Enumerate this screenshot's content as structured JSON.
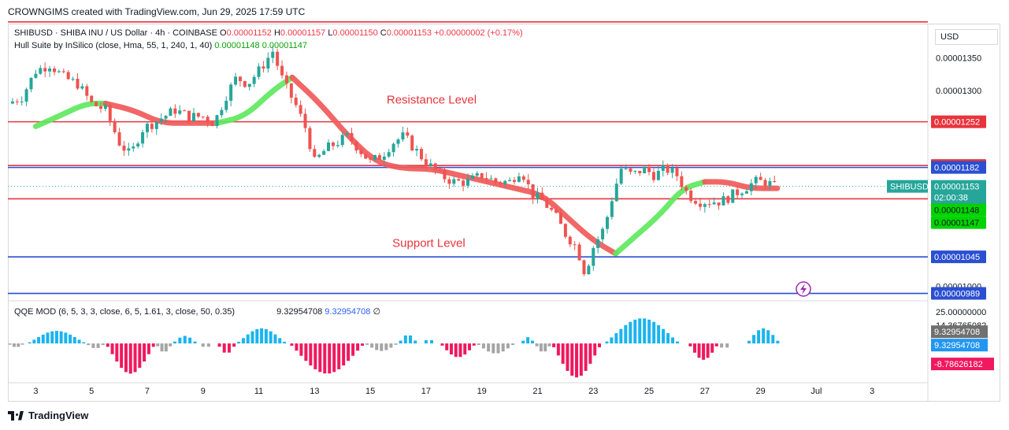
{
  "header": {
    "attribution": "CROWNGIMS created with TradingView.com, Jun 29, 2025 17:59 UTC",
    "symbol_line": "SHIBUSD · SHIBA INU / US Dollar · 4h · COINBASE",
    "ohlc": [
      {
        "k": "O",
        "v": "0.00001152"
      },
      {
        "k": "H",
        "v": "0.00001157"
      },
      {
        "k": "L",
        "v": "0.00001150"
      },
      {
        "k": "C",
        "v": "0.00001153"
      }
    ],
    "change": "+0.00000002 (+0.17%)",
    "indicator1_name": "Hull Suite by InSilico (close, Hma, 55, 1, 240, 1, 40)",
    "indicator1_values": [
      "0.00001148",
      "0.00001147"
    ],
    "indicator2_name": "QQE MOD (6, 5, 3, 3, close, 6, 5, 1.61, 3, close, 50, 0.35)",
    "indicator2_values": [
      "9.32954708",
      "9.32954708"
    ],
    "indicator2_extra": "∅",
    "currency": "USD",
    "brand": "TradingView"
  },
  "colors": {
    "up": "#26a69a",
    "down": "#ef5350",
    "hull_up": "#5ee85e",
    "hull_down": "#f05a5a",
    "red_line": "#e8343d",
    "blue_line": "#2a4fd1",
    "qqe_blue": "#1ab4f0",
    "qqe_red": "#f0185f",
    "qqe_gray": "#a5a5a5"
  },
  "chart_data": {
    "type": "candlestick",
    "title": "SHIBUSD · SHIBA INU / US Dollar · 4h · COINBASE",
    "price_axis": {
      "ticks": [
        "0.00001350",
        "0.00001300",
        "0.00001000"
      ],
      "ylim": [
        9.8e-06,
        1.4e-05
      ]
    },
    "x_ticks": [
      {
        "label": "3",
        "day": 3
      },
      {
        "label": "5",
        "day": 5
      },
      {
        "label": "7",
        "day": 7
      },
      {
        "label": "9",
        "day": 9
      },
      {
        "label": "11",
        "day": 11
      },
      {
        "label": "13",
        "day": 13
      },
      {
        "label": "15",
        "day": 15
      },
      {
        "label": "17",
        "day": 17
      },
      {
        "label": "19",
        "day": 19
      },
      {
        "label": "21",
        "day": 21
      },
      {
        "label": "23",
        "day": 23
      },
      {
        "label": "25",
        "day": 25
      },
      {
        "label": "27",
        "day": 27
      },
      {
        "label": "29",
        "day": 29
      },
      {
        "label": "Jul",
        "day": 31
      },
      {
        "label": "3",
        "day": 33
      }
    ],
    "xlim_days": [
      2.0,
      35.0
    ],
    "horizontal_levels": [
      {
        "value": 1.405e-05,
        "color": "red",
        "label": ""
      },
      {
        "value": 1.252e-05,
        "color": "red",
        "label": "0.00001252"
      },
      {
        "value": 1.185e-05,
        "color": "red",
        "label": "0.00001185"
      },
      {
        "value": 1.182e-05,
        "color": "blue",
        "label": "0.00001182"
      },
      {
        "value": 1.134e-05,
        "color": "red",
        "label": "0.00001134"
      },
      {
        "value": 1.045e-05,
        "color": "blue",
        "label": "0.00001045"
      },
      {
        "value": 9.89e-06,
        "color": "blue",
        "label": "0.00000989"
      }
    ],
    "annotations": [
      {
        "text": "Resistance Level",
        "day": 17.2,
        "value": 1.28e-05
      },
      {
        "text": "Support Level",
        "day": 17.1,
        "value": 1.06e-05
      }
    ],
    "current_price": {
      "symbol": "SHIBUSD",
      "value": "0.00001153",
      "countdown": "02:00:38"
    },
    "hull_labels": [
      "0.00001148",
      "0.00001147"
    ],
    "close_path": [
      [
        2.0,
        1.28e-05
      ],
      [
        2.5,
        1.29e-05
      ],
      [
        3.0,
        1.33e-05
      ],
      [
        3.5,
        1.34e-05
      ],
      [
        4.0,
        1.32e-05
      ],
      [
        4.5,
        1.31e-05
      ],
      [
        5.0,
        1.28e-05
      ],
      [
        5.5,
        1.27e-05
      ],
      [
        6.0,
        1.22e-05
      ],
      [
        6.4,
        1.2e-05
      ],
      [
        6.8,
        1.24e-05
      ],
      [
        7.2,
        1.25e-05
      ],
      [
        7.6,
        1.26e-05
      ],
      [
        8.0,
        1.27e-05
      ],
      [
        8.5,
        1.26e-05
      ],
      [
        9.0,
        1.26e-05
      ],
      [
        9.4,
        1.25e-05
      ],
      [
        9.8,
        1.29e-05
      ],
      [
        10.2,
        1.32e-05
      ],
      [
        10.6,
        1.31e-05
      ],
      [
        11.0,
        1.33e-05
      ],
      [
        11.5,
        1.36e-05
      ],
      [
        11.9,
        1.31e-05
      ],
      [
        12.3,
        1.28e-05
      ],
      [
        12.7,
        1.24e-05
      ],
      [
        13.0,
        1.19e-05
      ],
      [
        13.4,
        1.21e-05
      ],
      [
        13.8,
        1.22e-05
      ],
      [
        14.2,
        1.23e-05
      ],
      [
        14.6,
        1.21e-05
      ],
      [
        15.0,
        1.19e-05
      ],
      [
        15.4,
        1.2e-05
      ],
      [
        15.8,
        1.22e-05
      ],
      [
        16.2,
        1.23e-05
      ],
      [
        16.6,
        1.21e-05
      ],
      [
        17.0,
        1.19e-05
      ],
      [
        17.5,
        1.17e-05
      ],
      [
        18.0,
        1.16e-05
      ],
      [
        18.5,
        1.16e-05
      ],
      [
        19.0,
        1.17e-05
      ],
      [
        19.5,
        1.16e-05
      ],
      [
        20.0,
        1.16e-05
      ],
      [
        20.4,
        1.18e-05
      ],
      [
        20.8,
        1.14e-05
      ],
      [
        21.2,
        1.13e-05
      ],
      [
        21.6,
        1.11e-05
      ],
      [
        22.0,
        1.08e-05
      ],
      [
        22.4,
        1.06e-05
      ],
      [
        22.7,
        1.02e-05
      ],
      [
        23.0,
        1.06e-05
      ],
      [
        23.4,
        1.09e-05
      ],
      [
        23.7,
        1.14e-05
      ],
      [
        24.0,
        1.18e-05
      ],
      [
        24.4,
        1.17e-05
      ],
      [
        24.8,
        1.18e-05
      ],
      [
        25.2,
        1.17e-05
      ],
      [
        25.6,
        1.18e-05
      ],
      [
        26.0,
        1.17e-05
      ],
      [
        26.4,
        1.14e-05
      ],
      [
        26.8,
        1.13e-05
      ],
      [
        27.2,
        1.13e-05
      ],
      [
        27.6,
        1.13e-05
      ],
      [
        28.0,
        1.14e-05
      ],
      [
        28.4,
        1.15e-05
      ],
      [
        28.8,
        1.16e-05
      ],
      [
        29.2,
        1.16e-05
      ],
      [
        29.6,
        1.15e-05
      ]
    ],
    "hull_segments": [
      {
        "trend": "up",
        "points": [
          [
            3.0,
            1.245e-05
          ],
          [
            3.8,
            1.26e-05
          ],
          [
            4.8,
            1.28e-05
          ],
          [
            5.5,
            1.28e-05
          ]
        ]
      },
      {
        "trend": "down",
        "points": [
          [
            5.5,
            1.28e-05
          ],
          [
            6.5,
            1.27e-05
          ],
          [
            7.5,
            1.25e-05
          ],
          [
            8.5,
            1.25e-05
          ],
          [
            9.5,
            1.25e-05
          ]
        ]
      },
      {
        "trend": "up",
        "points": [
          [
            9.5,
            1.25e-05
          ],
          [
            10.5,
            1.26e-05
          ],
          [
            11.5,
            1.3e-05
          ],
          [
            12.2,
            1.32e-05
          ]
        ]
      },
      {
        "trend": "down",
        "points": [
          [
            12.2,
            1.32e-05
          ],
          [
            13.2,
            1.28e-05
          ],
          [
            14.2,
            1.23e-05
          ],
          [
            15.2,
            1.19e-05
          ],
          [
            16.2,
            1.18e-05
          ],
          [
            17.2,
            1.18e-05
          ],
          [
            18.2,
            1.17e-05
          ],
          [
            19.2,
            1.16e-05
          ],
          [
            20.2,
            1.15e-05
          ],
          [
            21.2,
            1.14e-05
          ],
          [
            22.2,
            1.1e-05
          ],
          [
            23.0,
            1.07e-05
          ],
          [
            23.8,
            1.05e-05
          ]
        ]
      },
      {
        "trend": "up",
        "points": [
          [
            23.8,
            1.05e-05
          ],
          [
            24.6,
            1.08e-05
          ],
          [
            25.4,
            1.11e-05
          ],
          [
            26.2,
            1.15e-05
          ],
          [
            27.0,
            1.16e-05
          ]
        ]
      },
      {
        "trend": "down",
        "points": [
          [
            27.0,
            1.16e-05
          ],
          [
            27.8,
            1.16e-05
          ],
          [
            28.6,
            1.15e-05
          ],
          [
            29.6,
            1.15e-05
          ]
        ]
      }
    ],
    "qqe": {
      "axis_labels": [
        "25.00000000",
        "14.36765082",
        "9.32954708",
        "9.32954708",
        "-8.78626182"
      ],
      "ylim": [
        -30,
        32
      ],
      "bars": [
        {
          "from": 2.0,
          "to": 2.6,
          "peak": -3,
          "color": "gray"
        },
        {
          "from": 2.7,
          "to": 4.8,
          "peak": 10,
          "color": "blue"
        },
        {
          "from": 4.8,
          "to": 5.5,
          "peak": -4,
          "color": "gray"
        },
        {
          "from": 5.5,
          "to": 7.3,
          "peak": -24,
          "color": "red"
        },
        {
          "from": 7.3,
          "to": 7.9,
          "peak": -7,
          "color": "gray"
        },
        {
          "from": 7.9,
          "to": 8.8,
          "peak": 6,
          "color": "blue"
        },
        {
          "from": 8.9,
          "to": 9.3,
          "peak": -4,
          "color": "gray"
        },
        {
          "from": 9.5,
          "to": 10.2,
          "peak": -8,
          "color": "red"
        },
        {
          "from": 10.2,
          "to": 12.0,
          "peak": 12,
          "color": "blue"
        },
        {
          "from": 12.1,
          "to": 14.8,
          "peak": -24,
          "color": "red"
        },
        {
          "from": 14.8,
          "to": 16.0,
          "peak": -6,
          "color": "gray"
        },
        {
          "from": 16.0,
          "to": 16.7,
          "peak": 7,
          "color": "blue"
        },
        {
          "from": 16.9,
          "to": 17.3,
          "peak": 4,
          "color": "blue"
        },
        {
          "from": 17.5,
          "to": 18.8,
          "peak": -11,
          "color": "red"
        },
        {
          "from": 18.8,
          "to": 20.2,
          "peak": -8,
          "color": "gray"
        },
        {
          "from": 20.4,
          "to": 20.9,
          "peak": 5,
          "color": "blue"
        },
        {
          "from": 20.9,
          "to": 21.5,
          "peak": -7,
          "color": "gray"
        },
        {
          "from": 21.5,
          "to": 23.3,
          "peak": -27,
          "color": "red"
        },
        {
          "from": 23.4,
          "to": 26.1,
          "peak": 20,
          "color": "blue"
        },
        {
          "from": 26.4,
          "to": 27.5,
          "peak": -13,
          "color": "red"
        },
        {
          "from": 27.5,
          "to": 27.9,
          "peak": -5,
          "color": "gray"
        },
        {
          "from": 28.5,
          "to": 29.7,
          "peak": 12,
          "color": "blue"
        }
      ]
    }
  }
}
